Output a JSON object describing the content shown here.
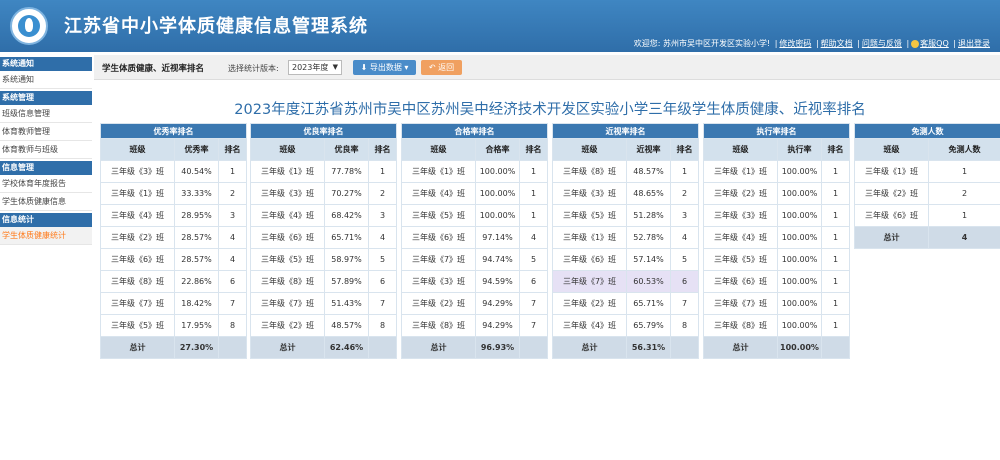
{
  "header": {
    "title": "江苏省中小学体质健康信息管理系统",
    "welcome": "欢迎您: 苏州市吴中区开发区实验小学!",
    "links": [
      "修改密码",
      "帮助文档",
      "问题与反馈",
      "客服QQ",
      "退出登录"
    ]
  },
  "sidebar": {
    "groups": [
      {
        "label": "系统通知",
        "items": [
          "系统通知"
        ]
      },
      {
        "label": "系统管理",
        "items": [
          "班级信息管理",
          "体育教师管理",
          "体育教师与班级"
        ]
      },
      {
        "label": "信息管理",
        "items": [
          "学校体育年度报告",
          "学生体质健康信息"
        ]
      },
      {
        "label": "信息统计",
        "items": [
          "学生体质健康统计"
        ]
      }
    ],
    "active": "学生体质健康统计"
  },
  "toolbar": {
    "title": "学生体质健康、近视率排名",
    "version_label": "选择统计版本:",
    "version_value": "2023年度",
    "export_label": "导出数据",
    "back_label": "返回"
  },
  "report_title": "2023年度江苏省苏州市吴中区苏州吴中经济技术开发区实验小学三年级学生体质健康、近视率排名",
  "tables": [
    {
      "caption": "优秀率排名",
      "col_class": "班级",
      "col_value": "优秀率",
      "col_rank": "排名",
      "rows": [
        [
          "三年级《3》班",
          "40.54%",
          "1"
        ],
        [
          "三年级《1》班",
          "33.33%",
          "2"
        ],
        [
          "三年级《4》班",
          "28.95%",
          "3"
        ],
        [
          "三年级《2》班",
          "28.57%",
          "4"
        ],
        [
          "三年级《6》班",
          "28.57%",
          "4"
        ],
        [
          "三年级《8》班",
          "22.86%",
          "6"
        ],
        [
          "三年级《7》班",
          "18.42%",
          "7"
        ],
        [
          "三年级《5》班",
          "17.95%",
          "8"
        ]
      ],
      "total_label": "总计",
      "total_value": "27.30%"
    },
    {
      "caption": "优良率排名",
      "col_class": "班级",
      "col_value": "优良率",
      "col_rank": "排名",
      "rows": [
        [
          "三年级《1》班",
          "77.78%",
          "1"
        ],
        [
          "三年级《3》班",
          "70.27%",
          "2"
        ],
        [
          "三年级《4》班",
          "68.42%",
          "3"
        ],
        [
          "三年级《6》班",
          "65.71%",
          "4"
        ],
        [
          "三年级《5》班",
          "58.97%",
          "5"
        ],
        [
          "三年级《8》班",
          "57.89%",
          "6"
        ],
        [
          "三年级《7》班",
          "51.43%",
          "7"
        ],
        [
          "三年级《2》班",
          "48.57%",
          "8"
        ]
      ],
      "total_label": "总计",
      "total_value": "62.46%"
    },
    {
      "caption": "合格率排名",
      "col_class": "班级",
      "col_value": "合格率",
      "col_rank": "排名",
      "rows": [
        [
          "三年级《1》班",
          "100.00%",
          "1"
        ],
        [
          "三年级《4》班",
          "100.00%",
          "1"
        ],
        [
          "三年级《5》班",
          "100.00%",
          "1"
        ],
        [
          "三年级《6》班",
          "97.14%",
          "4"
        ],
        [
          "三年级《7》班",
          "94.74%",
          "5"
        ],
        [
          "三年级《3》班",
          "94.59%",
          "6"
        ],
        [
          "三年级《2》班",
          "94.29%",
          "7"
        ],
        [
          "三年级《8》班",
          "94.29%",
          "7"
        ]
      ],
      "total_label": "总计",
      "total_value": "96.93%"
    },
    {
      "caption": "近视率排名",
      "col_class": "班级",
      "col_value": "近视率",
      "col_rank": "排名",
      "rows": [
        [
          "三年级《8》班",
          "48.57%",
          "1"
        ],
        [
          "三年级《3》班",
          "48.65%",
          "2"
        ],
        [
          "三年级《5》班",
          "51.28%",
          "3"
        ],
        [
          "三年级《1》班",
          "52.78%",
          "4"
        ],
        [
          "三年级《6》班",
          "57.14%",
          "5"
        ],
        [
          "三年级《7》班",
          "60.53%",
          "6"
        ],
        [
          "三年级《2》班",
          "65.71%",
          "7"
        ],
        [
          "三年级《4》班",
          "65.79%",
          "8"
        ]
      ],
      "highlight_row": 5,
      "total_label": "总计",
      "total_value": "56.31%"
    },
    {
      "caption": "执行率排名",
      "col_class": "班级",
      "col_value": "执行率",
      "col_rank": "排名",
      "rows": [
        [
          "三年级《1》班",
          "100.00%",
          "1"
        ],
        [
          "三年级《2》班",
          "100.00%",
          "1"
        ],
        [
          "三年级《3》班",
          "100.00%",
          "1"
        ],
        [
          "三年级《4》班",
          "100.00%",
          "1"
        ],
        [
          "三年级《5》班",
          "100.00%",
          "1"
        ],
        [
          "三年级《6》班",
          "100.00%",
          "1"
        ],
        [
          "三年级《7》班",
          "100.00%",
          "1"
        ],
        [
          "三年级《8》班",
          "100.00%",
          "1"
        ]
      ],
      "total_label": "总计",
      "total_value": "100.00%"
    },
    {
      "caption": "免测人数",
      "col_class": "班级",
      "col_value": "免测人数",
      "rows": [
        [
          "三年级《1》班",
          "1"
        ],
        [
          "三年级《2》班",
          "2"
        ],
        [
          "三年级《6》班",
          "1"
        ]
      ],
      "total_label": "总计",
      "total_value": "4"
    }
  ],
  "colors": {
    "header_blue": "#2f6ea9",
    "table_caption": "#3b78b1",
    "accent_orange": "#ff7a1a"
  }
}
